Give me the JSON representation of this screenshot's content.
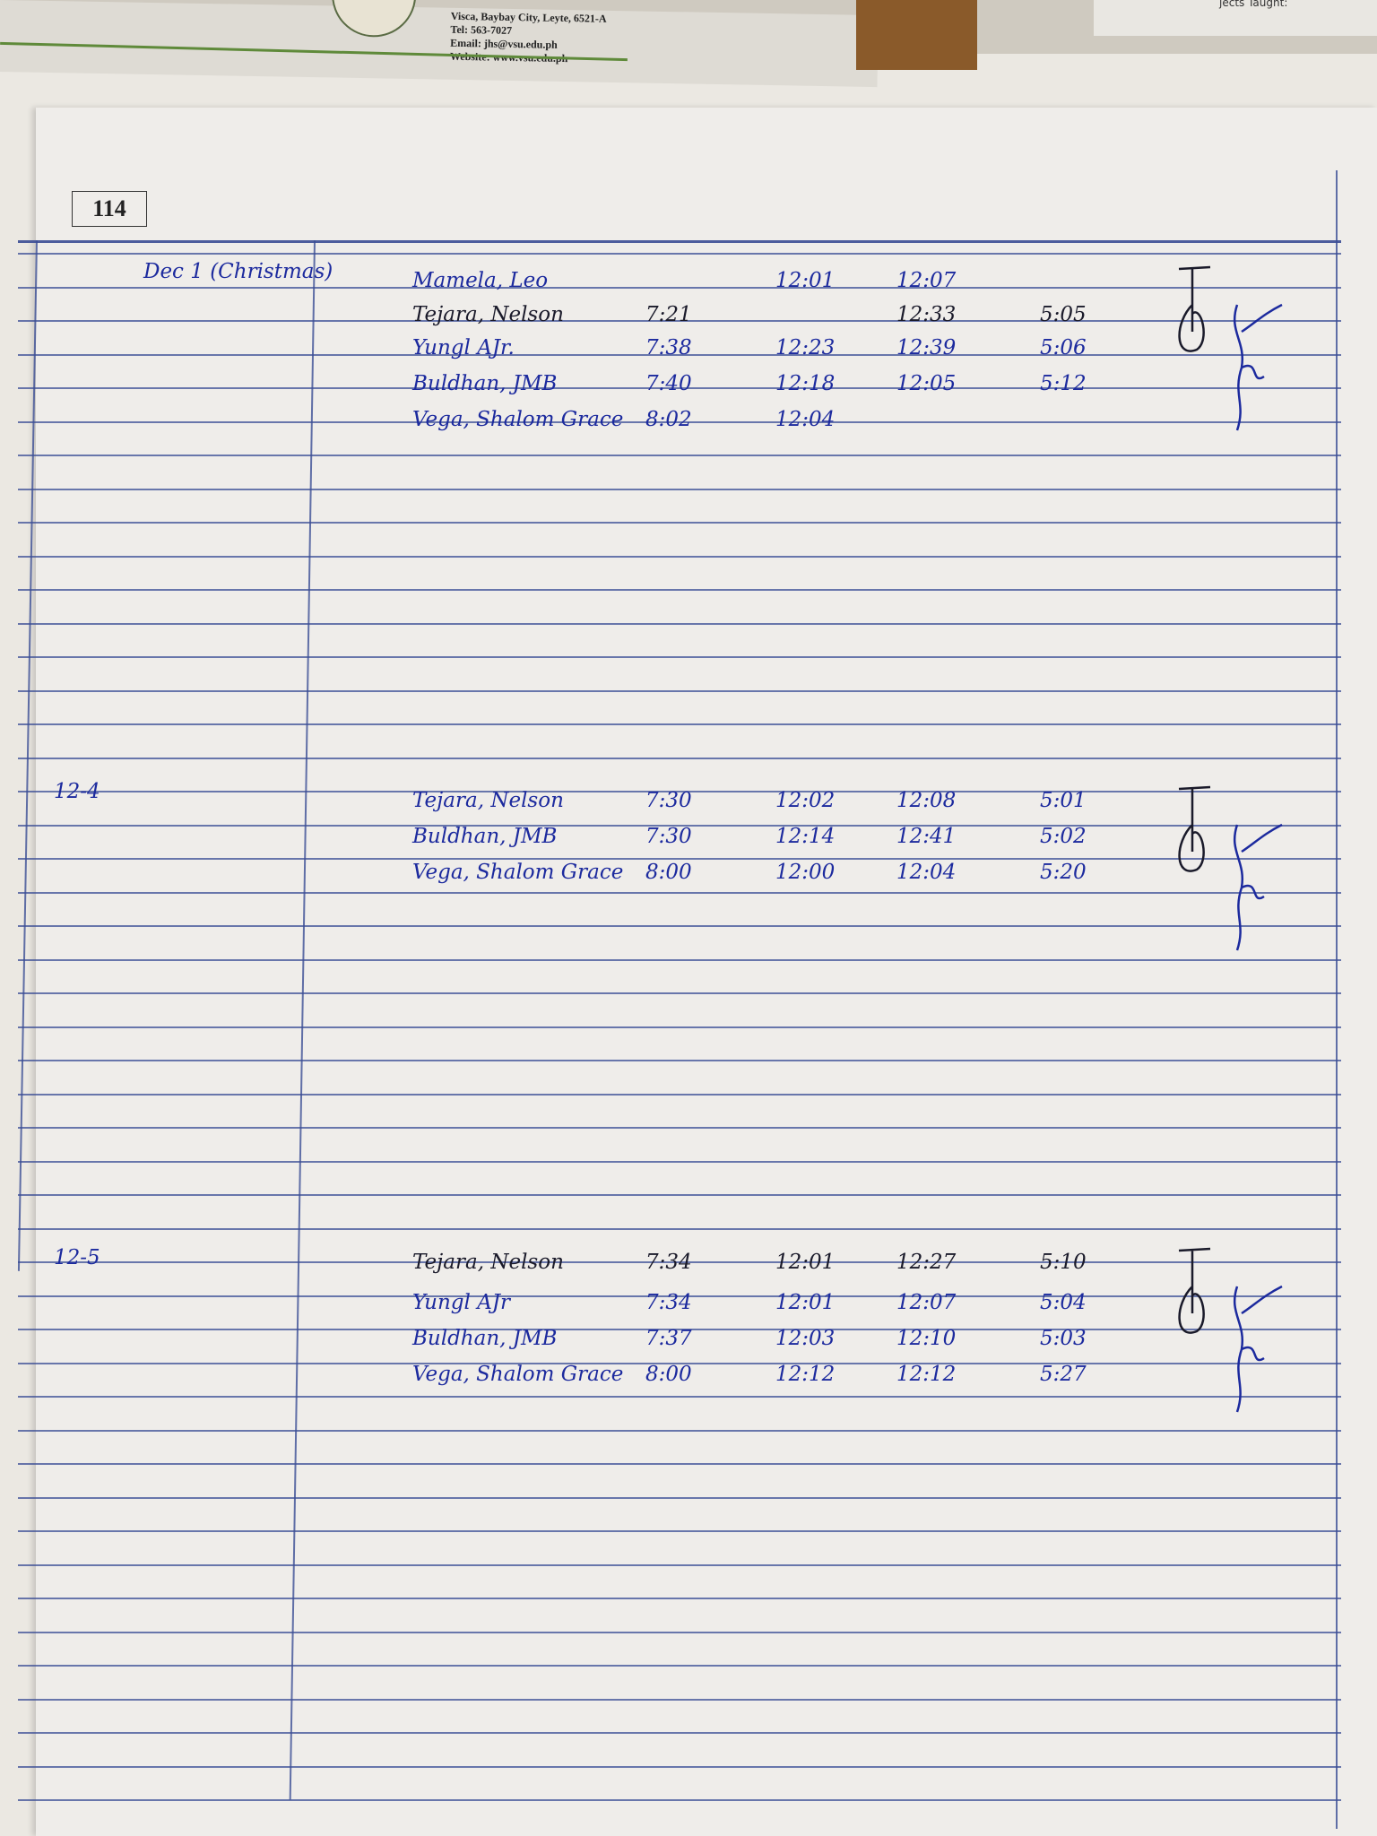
{
  "letterhead": {
    "address": "Visca, Baybay City, Leyte, 6521-A",
    "tel": "Tel: 563-7027",
    "email": "Email: jhs@vsu.edu.ph",
    "website": "Website: www.vsu.edu.ph",
    "right_text": "jects Taught:"
  },
  "page_number": "114",
  "ink_color": "#1c2a9e",
  "rule_color": "#3b4d95",
  "sections": [
    {
      "date": "Dec 1 (Christmas)",
      "rows": [
        {
          "name": "Mamela, Leo",
          "time_in": "",
          "lunch_out": "12:01",
          "lunch_in": "12:07",
          "time_out": ""
        },
        {
          "name": "Tejara, Nelson",
          "time_in": "7:21",
          "lunch_out": "",
          "lunch_in": "12:33",
          "time_out": "5:05"
        },
        {
          "name": "Yungl AJr.",
          "time_in": "7:38",
          "lunch_out": "12:23",
          "lunch_in": "12:39",
          "time_out": "5:06"
        },
        {
          "name": "Buldhan, JMB",
          "time_in": "7:40",
          "lunch_out": "12:18",
          "lunch_in": "12:05",
          "time_out": "5:12"
        },
        {
          "name": "Vega, Shalom Grace",
          "time_in": "8:02",
          "lunch_out": "12:04",
          "lunch_in": "",
          "time_out": ""
        }
      ]
    },
    {
      "date": "12-4",
      "rows": [
        {
          "name": "Tejara, Nelson",
          "time_in": "7:30",
          "lunch_out": "12:02",
          "lunch_in": "12:08",
          "time_out": "5:01"
        },
        {
          "name": "Buldhan, JMB",
          "time_in": "7:30",
          "lunch_out": "12:14",
          "lunch_in": "12:41",
          "time_out": "5:02"
        },
        {
          "name": "Vega, Shalom Grace",
          "time_in": "8:00",
          "lunch_out": "12:00",
          "lunch_in": "12:04",
          "time_out": "5:20"
        }
      ]
    },
    {
      "date": "12-5",
      "rows": [
        {
          "name": "Tejara, Nelson",
          "time_in": "7:34",
          "lunch_out": "12:01",
          "lunch_in": "12:27",
          "time_out": "5:10"
        },
        {
          "name": "Yungl AJr",
          "time_in": "7:34",
          "lunch_out": "12:01",
          "lunch_in": "12:07",
          "time_out": "5:04"
        },
        {
          "name": "Buldhan, JMB",
          "time_in": "7:37",
          "lunch_out": "12:03",
          "lunch_in": "12:10",
          "time_out": "5:03"
        },
        {
          "name": "Vega, Shalom Grace",
          "time_in": "8:00",
          "lunch_out": "12:12",
          "lunch_in": "12:12",
          "time_out": "5:27"
        }
      ]
    }
  ]
}
